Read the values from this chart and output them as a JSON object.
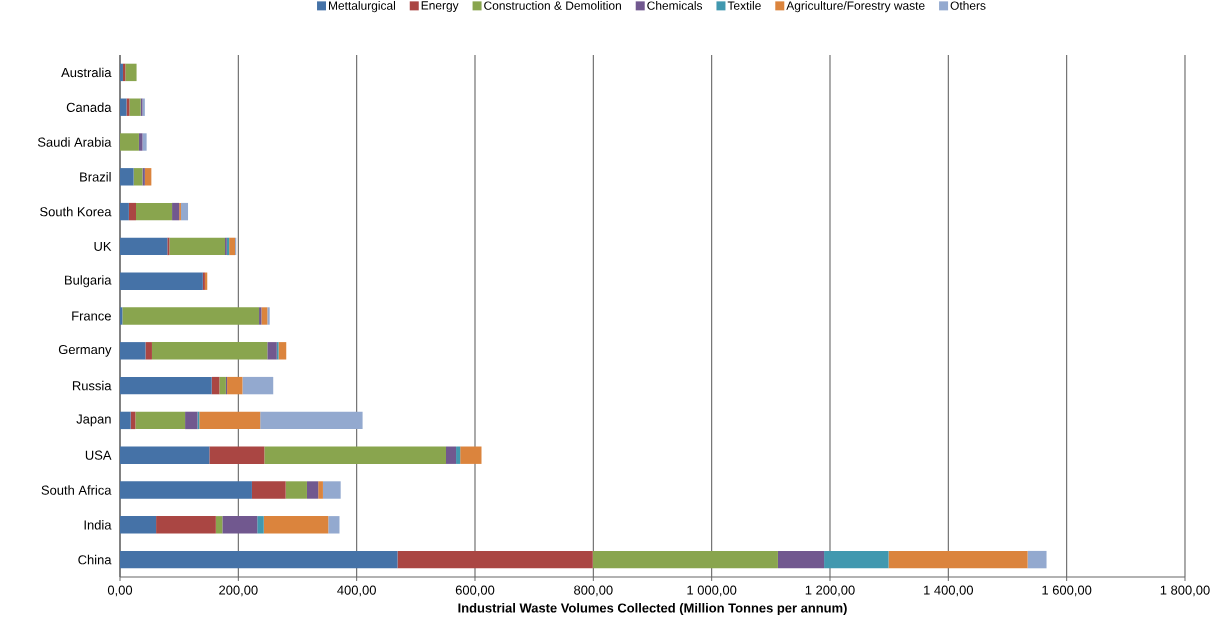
{
  "chart_data": {
    "type": "bar",
    "orientation": "horizontal",
    "stacked": true,
    "xlabel": "Industrial Waste Volumes Collected (Million Tonnes per annum)",
    "categories": [
      "Australia",
      "Canada",
      "Saudi Arabia",
      "Brazil",
      "South Korea",
      "UK",
      "Bulgaria",
      "France",
      "Germany",
      "Russia",
      "Japan",
      "USA",
      "South Africa",
      "India",
      "China"
    ],
    "series": [
      {
        "name": "Mettalurgical",
        "color": "#4572a7",
        "values": [
          5,
          11,
          0,
          23,
          15,
          80,
          140,
          4,
          43,
          155,
          18,
          151,
          223,
          61,
          469
        ]
      },
      {
        "name": "Energy",
        "color": "#aa4643",
        "values": [
          4,
          5,
          0,
          0,
          12,
          3.5,
          3.5,
          0,
          11,
          13,
          8,
          93,
          57,
          101,
          330
        ]
      },
      {
        "name": "Construction & Demolition",
        "color": "#89a54e",
        "values": [
          19,
          19,
          32,
          15,
          61,
          94,
          0,
          231,
          195,
          11,
          84,
          307,
          36,
          11,
          313
        ]
      },
      {
        "name": "Chemicals",
        "color": "#71588f",
        "values": [
          0,
          3,
          6,
          4,
          12,
          3,
          0,
          4,
          16,
          2,
          21,
          17,
          19,
          59,
          78
        ]
      },
      {
        "name": "Textile",
        "color": "#4198af",
        "values": [
          0,
          0,
          0,
          0,
          0,
          4,
          0,
          0,
          3,
          0,
          3,
          7,
          0,
          11,
          109
        ]
      },
      {
        "name": "Agriculture/Forestry waste",
        "color": "#db843d",
        "values": [
          0,
          0,
          0,
          11,
          3,
          10,
          4,
          10,
          13,
          26,
          103,
          36,
          8,
          109,
          235
        ]
      },
      {
        "name": "Others",
        "color": "#93a9cf",
        "values": [
          0,
          4,
          7,
          0,
          12,
          2,
          0,
          4,
          0,
          52,
          173,
          0,
          30,
          19,
          32
        ]
      }
    ],
    "xlim": [
      0,
      1800
    ],
    "xticks": [
      {
        "value": 0,
        "label": "0,00"
      },
      {
        "value": 200,
        "label": "200,00"
      },
      {
        "value": 400,
        "label": "400,00"
      },
      {
        "value": 600,
        "label": "600,00"
      },
      {
        "value": 800,
        "label": "800,00"
      },
      {
        "value": 1000,
        "label": "1 000,00"
      },
      {
        "value": 1200,
        "label": "1 200,00"
      },
      {
        "value": 1400,
        "label": "1 400,00"
      },
      {
        "value": 1600,
        "label": "1 600,00"
      },
      {
        "value": 1800,
        "label": "1 800,00"
      }
    ],
    "grid": "x",
    "legend": "top"
  }
}
